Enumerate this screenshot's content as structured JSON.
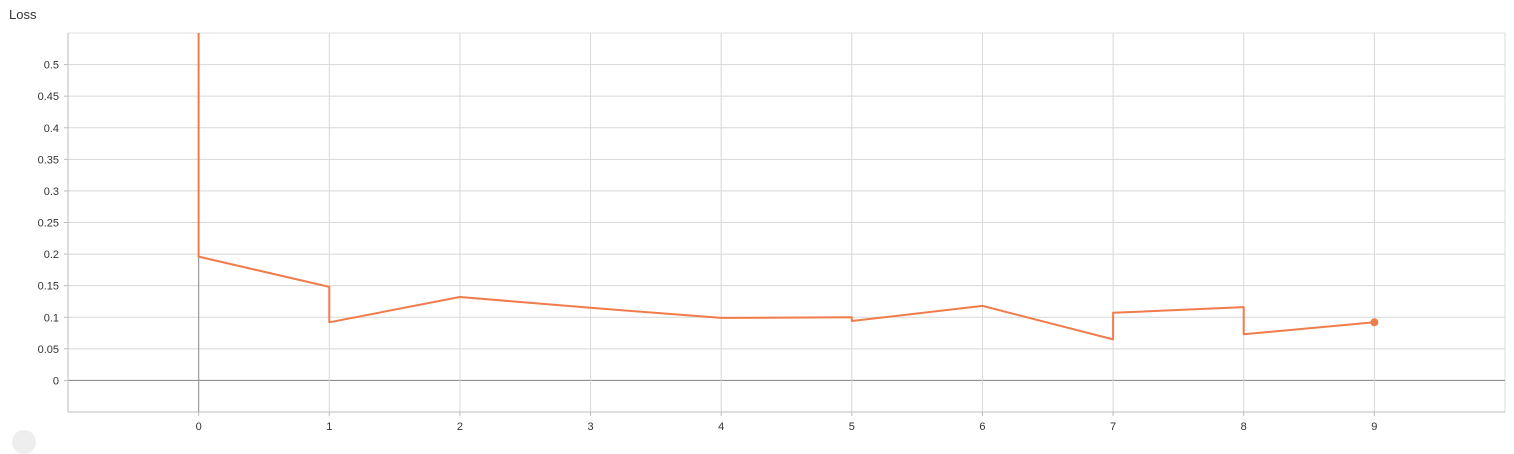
{
  "chart_data": {
    "type": "line",
    "title": "Loss",
    "xlabel": "",
    "ylabel": "",
    "xlim": [
      -1,
      10
    ],
    "ylim": [
      -0.05,
      0.55
    ],
    "x_ticks": [
      "0",
      "1",
      "2",
      "3",
      "4",
      "5",
      "6",
      "7",
      "8",
      "9"
    ],
    "y_ticks": [
      "0",
      "0.05",
      "0.1",
      "0.15",
      "0.2",
      "0.25",
      "0.3",
      "0.35",
      "0.4",
      "0.45",
      "0.5"
    ],
    "grid": true,
    "series": [
      {
        "color": "#f07c4c",
        "x": [
          0,
          0,
          1,
          1,
          2,
          3,
          4,
          5,
          5,
          6,
          7,
          7,
          8,
          8,
          9
        ],
        "y": [
          0.55,
          0.196,
          0.148,
          0.092,
          0.132,
          0.115,
          0.099,
          0.1,
          0.094,
          0.118,
          0.065,
          0.107,
          0.116,
          0.073,
          0.092
        ]
      }
    ],
    "last_point_marker": true
  }
}
